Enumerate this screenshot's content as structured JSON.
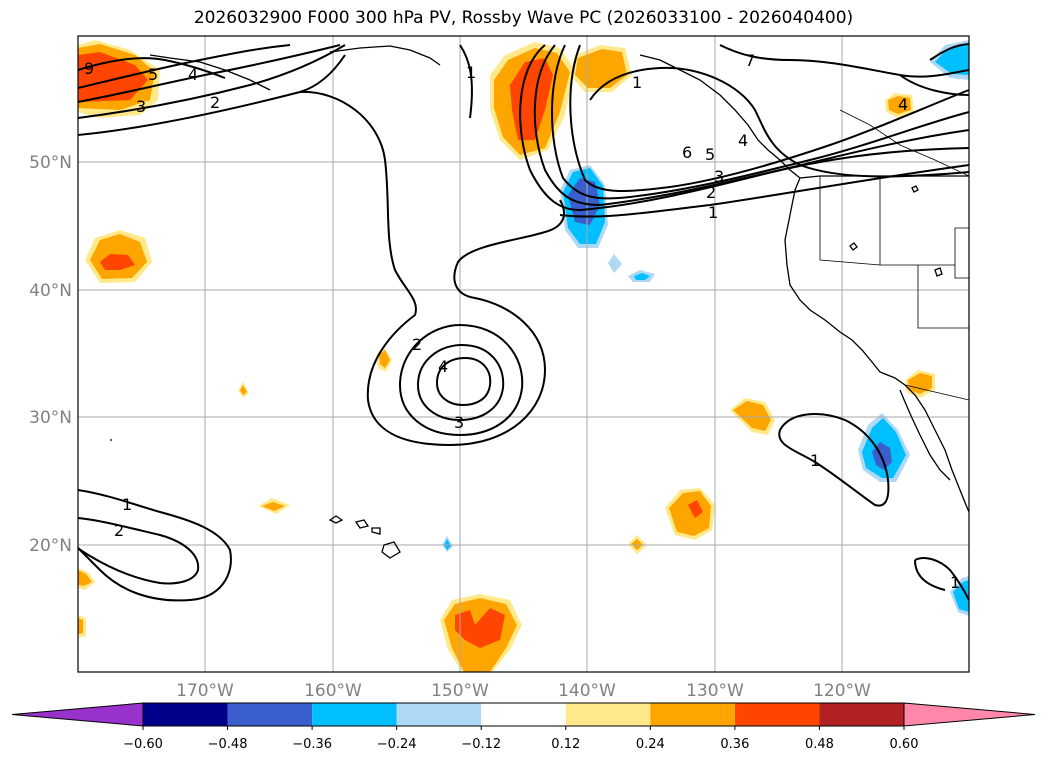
{
  "title": "2026032900 F000 300 hPa PV, Rossby Wave PC (2026033100 - 2026040400)",
  "lat_labels": [
    "50°N",
    "40°N",
    "30°N",
    "20°N"
  ],
  "lon_labels": [
    "170°W",
    "160°W",
    "150°W",
    "140°W",
    "130°W",
    "120°W"
  ],
  "colorbar": {
    "ticks": [
      "−0.60",
      "−0.48",
      "−0.36",
      "−0.24",
      "−0.12",
      "0.12",
      "0.24",
      "0.36",
      "0.48",
      "0.60"
    ],
    "colors": [
      "#9932cc",
      "#00008b",
      "#3a5fcd",
      "#00bfff",
      "#add8f6",
      "#ffffff",
      "#ffe98a",
      "#ffa500",
      "#ff4500",
      "#b22222",
      "#ff88aa"
    ]
  },
  "contour_labels": [
    "9",
    "3",
    "2",
    "4",
    "5",
    "1",
    "1",
    "7",
    "6",
    "5",
    "4",
    "3",
    "2",
    "1",
    "4",
    "2",
    "4",
    "3",
    "1",
    "2",
    "1",
    "1"
  ],
  "legend_colors": {
    "orange": "#ffa500",
    "red": "#ff4500",
    "yellow": "#ffe98a",
    "blue": "#00bfff",
    "darkblue": "#3a5fcd",
    "lightblue": "#add8f6"
  }
}
